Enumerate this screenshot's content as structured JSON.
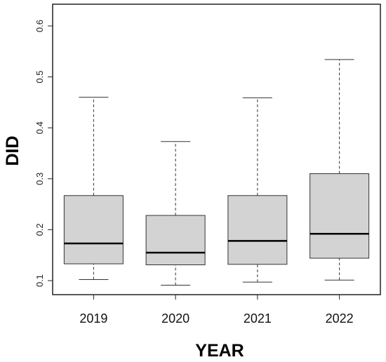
{
  "chart_data": {
    "type": "boxplot",
    "xlabel": "YEAR",
    "ylabel": "DID",
    "ylim": [
      0.07,
      0.625
    ],
    "yticks": [
      0.1,
      0.2,
      0.3,
      0.4,
      0.5,
      0.6
    ],
    "categories": [
      "2019",
      "2020",
      "2021",
      "2022"
    ],
    "boxes": [
      {
        "category": "2019",
        "min": 0.102,
        "q1": 0.133,
        "median": 0.173,
        "q3": 0.267,
        "max": 0.46
      },
      {
        "category": "2020",
        "min": 0.091,
        "q1": 0.131,
        "median": 0.155,
        "q3": 0.228,
        "max": 0.373
      },
      {
        "category": "2021",
        "min": 0.097,
        "q1": 0.132,
        "median": 0.178,
        "q3": 0.267,
        "max": 0.459
      },
      {
        "category": "2022",
        "min": 0.101,
        "q1": 0.144,
        "median": 0.192,
        "q3": 0.31,
        "max": 0.534
      }
    ],
    "grid": false,
    "colors": {
      "box_fill": "#d3d3d3",
      "stroke": "#333333",
      "median": "#000000",
      "frame": "#222222"
    }
  }
}
